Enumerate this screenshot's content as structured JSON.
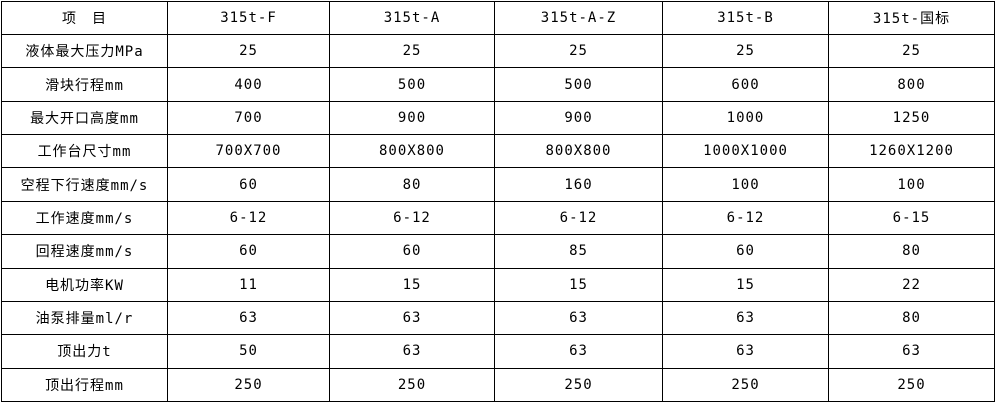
{
  "table": {
    "columns": [
      "项　目",
      "315t-F",
      "315t-A",
      "315t-A-Z",
      "315t-B",
      "315t-国标"
    ],
    "rows": [
      {
        "label": "液体最大压力MPa",
        "values": [
          "25",
          "25",
          "25",
          "25",
          "25"
        ]
      },
      {
        "label": "滑块行程mm",
        "values": [
          "400",
          "500",
          "500",
          "600",
          "800"
        ]
      },
      {
        "label": "最大开口高度mm",
        "values": [
          "700",
          "900",
          "900",
          "1000",
          "1250"
        ]
      },
      {
        "label": "工作台尺寸mm",
        "values": [
          "700X700",
          "800X800",
          "800X800",
          "1000X1000",
          "1260X1200"
        ]
      },
      {
        "label": "空程下行速度mm/s",
        "values": [
          "60",
          "80",
          "160",
          "100",
          "100"
        ]
      },
      {
        "label": "工作速度mm/s",
        "values": [
          "6-12",
          "6-12",
          "6-12",
          "6-12",
          "6-15"
        ]
      },
      {
        "label": "回程速度mm/s",
        "values": [
          "60",
          "60",
          "85",
          "60",
          "80"
        ]
      },
      {
        "label": "电机功率KW",
        "values": [
          "11",
          "15",
          "15",
          "15",
          "22"
        ]
      },
      {
        "label": "油泵排量ml/r",
        "values": [
          "63",
          "63",
          "63",
          "63",
          "80"
        ]
      },
      {
        "label": "顶出力t",
        "values": [
          "50",
          "63",
          "63",
          "63",
          "63"
        ]
      },
      {
        "label": "顶出行程mm",
        "values": [
          "250",
          "250",
          "250",
          "250",
          "250"
        ]
      }
    ],
    "colors": {
      "border": "#000000",
      "text": "#000000",
      "background": "#ffffff"
    }
  }
}
